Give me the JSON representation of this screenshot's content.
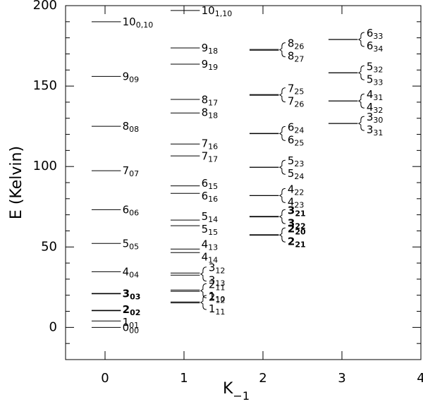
{
  "chart_data": {
    "type": "levels",
    "ylabel": "E (Kelvin)",
    "xlabel": {
      "text": "K",
      "sub": "−1"
    },
    "xlim": [
      -0.5,
      4
    ],
    "xticks": [
      0,
      1,
      2,
      3,
      4
    ],
    "ylim": [
      -20,
      200
    ],
    "yticks": [
      0,
      50,
      100,
      150,
      200
    ],
    "yminorticks": [
      -10,
      10,
      20,
      30,
      40,
      60,
      70,
      80,
      90,
      110,
      120,
      130,
      140,
      160,
      170,
      180,
      190
    ],
    "color": "#000000",
    "levels": [
      {
        "k": 0,
        "energy": 190,
        "j": "10",
        "sub": "0,10"
      },
      {
        "k": 0,
        "energy": 156,
        "j": "9",
        "sub": "09"
      },
      {
        "k": 0,
        "energy": 125,
        "j": "8",
        "sub": "08"
      },
      {
        "k": 0,
        "energy": 97.4,
        "j": "7",
        "sub": "07"
      },
      {
        "k": 0,
        "energy": 73.2,
        "j": "6",
        "sub": "06"
      },
      {
        "k": 0,
        "energy": 52.2,
        "j": "5",
        "sub": "05"
      },
      {
        "k": 0,
        "energy": 34.6,
        "j": "4",
        "sub": "04"
      },
      {
        "k": 0,
        "energy": 21,
        "j": "3",
        "sub": "03",
        "bold": true
      },
      {
        "k": 0,
        "energy": 10.5,
        "j": "2",
        "sub": "02",
        "bold": true
      },
      {
        "k": 0,
        "energy": 4,
        "j": "1",
        "sub": "01"
      },
      {
        "k": 0,
        "energy": 0,
        "j": "0",
        "sub": "00"
      },
      {
        "k": 1,
        "energy": 197,
        "j": "10",
        "sub": "1,10"
      },
      {
        "k": 1,
        "energy": 173.7,
        "j": "9",
        "sub": "18"
      },
      {
        "k": 1,
        "energy": 163.6,
        "j": "9",
        "sub": "19"
      },
      {
        "k": 1,
        "energy": 141.7,
        "j": "8",
        "sub": "17"
      },
      {
        "k": 1,
        "energy": 133.3,
        "j": "8",
        "sub": "18"
      },
      {
        "k": 1,
        "energy": 114,
        "j": "7",
        "sub": "16"
      },
      {
        "k": 1,
        "energy": 106.6,
        "j": "7",
        "sub": "17"
      },
      {
        "k": 1,
        "energy": 88,
        "j": "6",
        "sub": "15"
      },
      {
        "k": 1,
        "energy": 83.3,
        "j": "6",
        "sub": "16"
      },
      {
        "k": 1,
        "energy": 66.7,
        "j": "5",
        "sub": "14"
      },
      {
        "k": 1,
        "energy": 63.2,
        "j": "5",
        "sub": "15"
      },
      {
        "k": 1,
        "energy": 48.7,
        "j": "4",
        "sub": "13"
      },
      {
        "k": 1,
        "energy": 46.5,
        "j": "4",
        "sub": "14"
      },
      {
        "k": 1,
        "energy": 33.8,
        "j": "3",
        "sub": "12"
      },
      {
        "k": 1,
        "energy": 32.5,
        "j": "3",
        "sub": "13"
      },
      {
        "k": 1,
        "energy": 23.2,
        "j": "2",
        "sub": "11"
      },
      {
        "k": 1,
        "energy": 22.4,
        "j": "2",
        "sub": "12"
      },
      {
        "k": 1,
        "energy": 15.8,
        "j": "1",
        "sub": "10"
      },
      {
        "k": 1,
        "energy": 15.2,
        "j": "1",
        "sub": "11"
      },
      {
        "k": 2,
        "energy": 172.8,
        "j": "8",
        "sub": "26"
      },
      {
        "k": 2,
        "energy": 172.3,
        "j": "8",
        "sub": "27"
      },
      {
        "k": 2,
        "energy": 144.7,
        "j": "7",
        "sub": "25"
      },
      {
        "k": 2,
        "energy": 144.3,
        "j": "7",
        "sub": "26"
      },
      {
        "k": 2,
        "energy": 120.6,
        "j": "6",
        "sub": "24"
      },
      {
        "k": 2,
        "energy": 120.4,
        "j": "6",
        "sub": "25"
      },
      {
        "k": 2,
        "energy": 99.6,
        "j": "5",
        "sub": "23"
      },
      {
        "k": 2,
        "energy": 99.5,
        "j": "5",
        "sub": "24"
      },
      {
        "k": 2,
        "energy": 82,
        "j": "4",
        "sub": "22"
      },
      {
        "k": 2,
        "energy": 81.9,
        "j": "4",
        "sub": "23"
      },
      {
        "k": 2,
        "energy": 68.9,
        "j": "3",
        "sub": "21",
        "bold": true
      },
      {
        "k": 2,
        "energy": 68.8,
        "j": "3",
        "sub": "22",
        "bold": true
      },
      {
        "k": 2,
        "energy": 57.5,
        "j": "2",
        "sub": "20",
        "bold": true
      },
      {
        "k": 2,
        "energy": 57.4,
        "j": "2",
        "sub": "21",
        "bold": true
      },
      {
        "k": 3,
        "energy": 179,
        "j": "6",
        "sub": "33"
      },
      {
        "k": 3,
        "energy": 178.9,
        "j": "6",
        "sub": "34"
      },
      {
        "k": 3,
        "energy": 158.3,
        "j": "5",
        "sub": "32"
      },
      {
        "k": 3,
        "energy": 158.2,
        "j": "5",
        "sub": "33"
      },
      {
        "k": 3,
        "energy": 140.8,
        "j": "4",
        "sub": "31"
      },
      {
        "k": 3,
        "energy": 140.7,
        "j": "4",
        "sub": "32"
      },
      {
        "k": 3,
        "energy": 126.8,
        "j": "3",
        "sub": "30"
      },
      {
        "k": 3,
        "energy": 126.7,
        "j": "3",
        "sub": "31"
      }
    ]
  }
}
